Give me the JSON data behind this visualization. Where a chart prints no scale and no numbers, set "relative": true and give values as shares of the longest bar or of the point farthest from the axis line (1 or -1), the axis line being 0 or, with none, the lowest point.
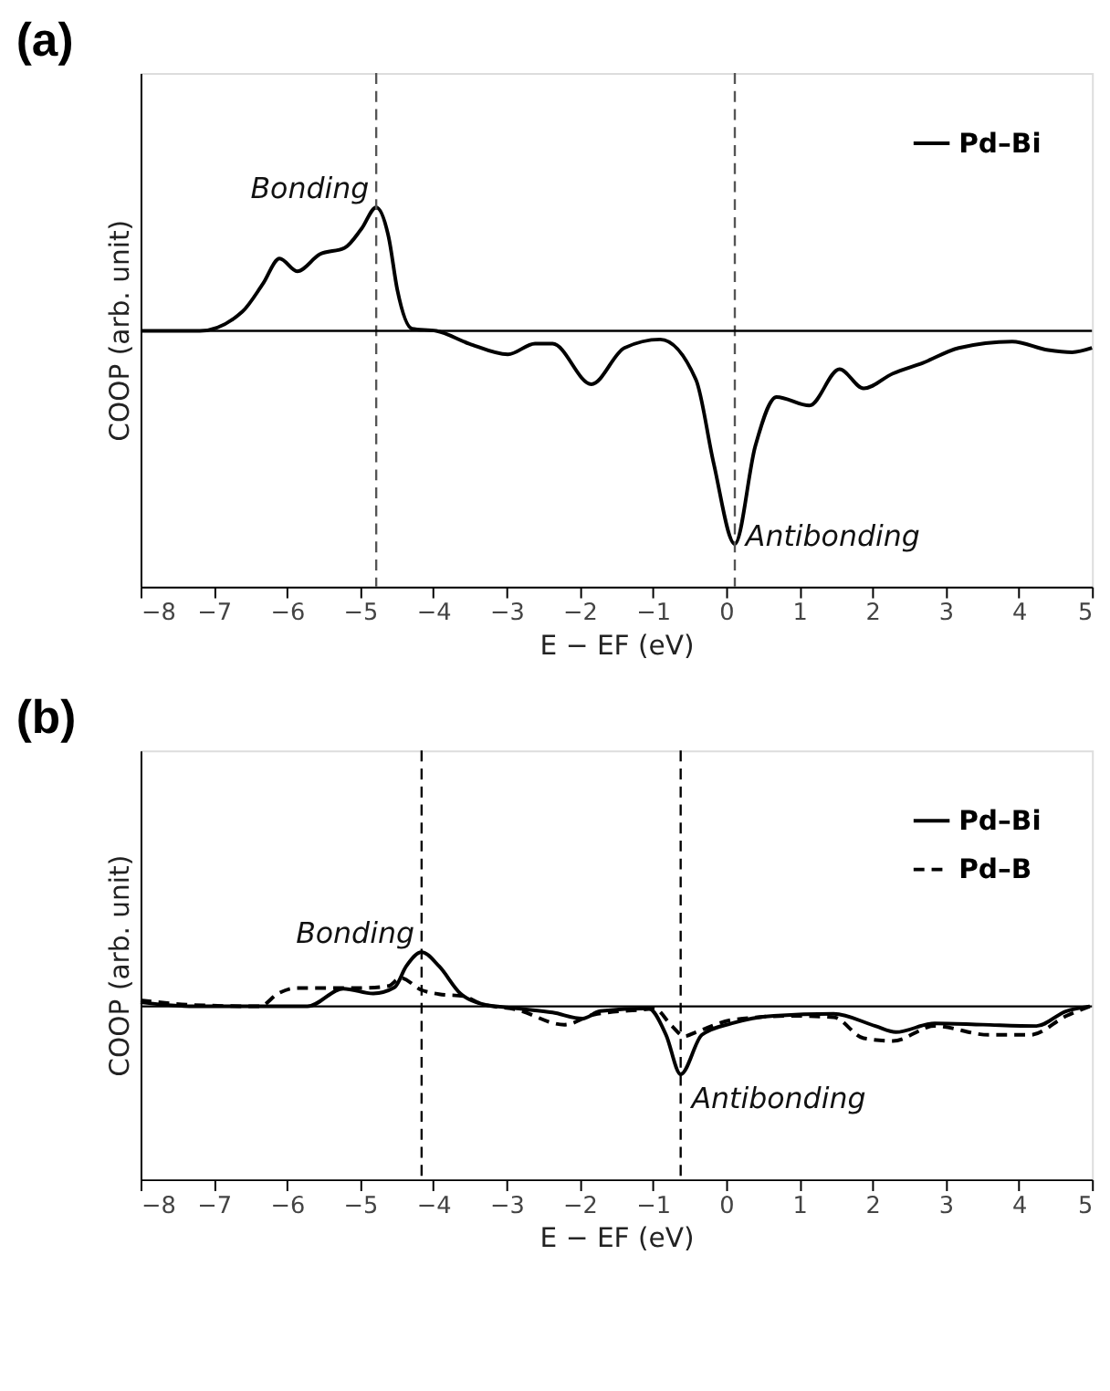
{
  "chart_data": [
    {
      "type": "line",
      "title": "(a)",
      "xlabel": "E − EF (eV)",
      "ylabel": "COOP (arb. unit)",
      "relative": true,
      "xlim": [
        -8,
        5
      ],
      "xticks": [
        -8,
        -7,
        -6,
        -5,
        -4,
        -3,
        -2,
        -1,
        0,
        1,
        2,
        3,
        4,
        5
      ],
      "tick_labels": "x",
      "grid": false,
      "legend": "top right",
      "marker": "none",
      "series": [
        {
          "name": "Pd–Bi",
          "color": "#000000",
          "line_style": "solid",
          "x": [
            -8,
            -7.19,
            -6.61,
            -6.33,
            -6.1,
            -5.86,
            -5.55,
            -5.21,
            -4.98,
            -4.78,
            -4.61,
            -4.49,
            -4.29,
            -3.96,
            -3.51,
            -2.98,
            -2.61,
            -2.37,
            -1.84,
            -1.39,
            -0.9,
            -0.41,
            -0.17,
            0.12,
            0.4,
            0.69,
            1.14,
            1.55,
            1.88,
            2.28,
            2.69,
            3.18,
            3.91,
            4.4,
            4.73,
            5.0
          ],
          "values": [
            0,
            0,
            0.09,
            0.22,
            0.34,
            0.28,
            0.36,
            0.39,
            0.48,
            0.58,
            0.44,
            0.19,
            0.01,
            0,
            -0.06,
            -0.11,
            -0.06,
            -0.06,
            -0.25,
            -0.08,
            -0.04,
            -0.23,
            -0.62,
            -1,
            -0.54,
            -0.31,
            -0.35,
            -0.18,
            -0.27,
            -0.2,
            -0.15,
            -0.08,
            -0.05,
            -0.09,
            -0.1,
            -0.08
          ]
        }
      ],
      "ref_lines": [
        {
          "axis": "x",
          "value": -4.78,
          "color": "#555555",
          "line_style": "dashed"
        },
        {
          "axis": "x",
          "value": 0.12,
          "color": "#555555",
          "line_style": "dashed"
        },
        {
          "axis": "y",
          "value": 0,
          "color": "#000000",
          "line_style": "solid"
        }
      ],
      "annotations": [
        {
          "text": "Bonding",
          "x": -4.78,
          "y": 0.58
        },
        {
          "text": "Antibonding",
          "x": 0.12,
          "y": -1
        }
      ]
    },
    {
      "type": "line",
      "title": "(b)",
      "xlabel": "E − EF (eV)",
      "ylabel": "COOP (arb. unit)",
      "relative": true,
      "xlim": [
        -8,
        5
      ],
      "xticks": [
        -8,
        -7,
        -6,
        -5,
        -4,
        -3,
        -2,
        -1,
        0,
        1,
        2,
        3,
        4,
        5
      ],
      "tick_labels": "x",
      "grid": false,
      "legend": "top right",
      "marker": "none",
      "series": [
        {
          "name": "Pd–Bi",
          "color": "#000000",
          "line_style": "solid",
          "x": [
            -8,
            -7.27,
            -6.37,
            -5.72,
            -5.23,
            -4.82,
            -4.53,
            -4.37,
            -4.16,
            -3.92,
            -3.63,
            -3.35,
            -2.86,
            -2.37,
            -1.96,
            -1.72,
            -1.06,
            -0.82,
            -0.62,
            -0.33,
            0.08,
            0.65,
            1.47,
            2.04,
            2.32,
            2.85,
            3.51,
            4.24,
            4.65,
            4.97
          ],
          "values": [
            0.06,
            0,
            0,
            0,
            0.26,
            0.19,
            0.28,
            0.59,
            0.8,
            0.59,
            0.19,
            0.04,
            -0.03,
            -0.09,
            -0.18,
            -0.07,
            -0.03,
            -0.42,
            -1,
            -0.42,
            -0.25,
            -0.14,
            -0.11,
            -0.29,
            -0.38,
            -0.25,
            -0.27,
            -0.29,
            -0.07,
            0
          ]
        },
        {
          "name": "Pd–B",
          "color": "#000000",
          "line_style": "dashed",
          "x": [
            -8,
            -7.27,
            -6.37,
            -6.12,
            -5.88,
            -5.0,
            -4.61,
            -4.45,
            -4.16,
            -3.92,
            -3.59,
            -3.35,
            -2.86,
            -2.21,
            -1.8,
            -1.06,
            -0.98,
            -0.74,
            -0.57,
            -0.41,
            0.08,
            0.9,
            1.47,
            1.88,
            2.28,
            2.85,
            3.59,
            4.16,
            4.65,
            4.97
          ],
          "values": [
            0.09,
            0.02,
            0,
            0.19,
            0.27,
            0.27,
            0.3,
            0.42,
            0.24,
            0.18,
            0.15,
            0.04,
            -0.05,
            -0.27,
            -0.12,
            -0.04,
            -0.03,
            -0.29,
            -0.44,
            -0.38,
            -0.2,
            -0.14,
            -0.16,
            -0.47,
            -0.51,
            -0.29,
            -0.42,
            -0.42,
            -0.14,
            0
          ]
        }
      ],
      "ref_lines": [
        {
          "axis": "x",
          "value": -4.16,
          "color": "#000000",
          "line_style": "dashed"
        },
        {
          "axis": "x",
          "value": -0.62,
          "color": "#000000",
          "line_style": "dashed"
        },
        {
          "axis": "y",
          "value": 0,
          "color": "#000000",
          "line_style": "solid"
        }
      ],
      "annotations": [
        {
          "text": "Bonding",
          "x": -4.16,
          "y": 0.8
        },
        {
          "text": "Antibonding",
          "x": -0.62,
          "y": -1
        }
      ]
    }
  ]
}
